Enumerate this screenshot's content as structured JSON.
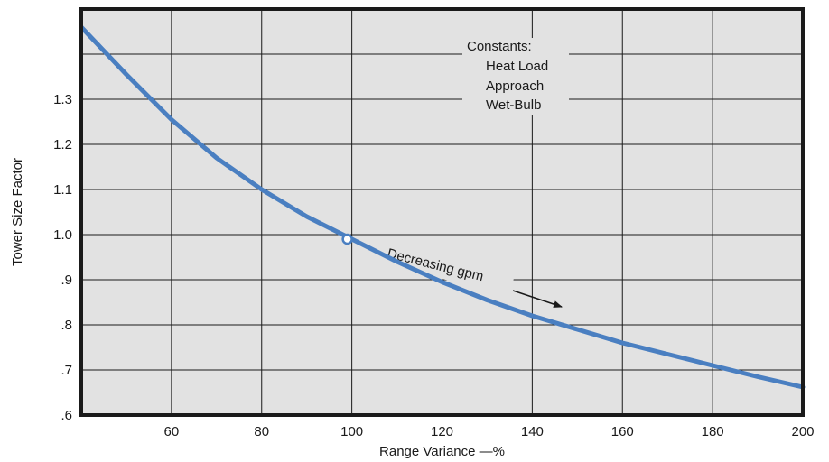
{
  "chart_data": {
    "type": "line",
    "title": "",
    "xlabel": "Range Variance —%",
    "ylabel": "Tower Size Factor",
    "xlim": [
      40,
      200
    ],
    "ylim": [
      0.6,
      1.5
    ],
    "x_ticks": [
      60,
      80,
      100,
      120,
      140,
      160,
      180,
      200
    ],
    "x_tick_labels": [
      "60",
      "80",
      "100",
      "120",
      "140",
      "160",
      "180",
      "200"
    ],
    "y_ticks": [
      0.6,
      0.7,
      0.8,
      0.9,
      1.0,
      1.1,
      1.2,
      1.3
    ],
    "y_tick_labels": [
      ".6",
      ".7",
      ".8",
      ".9",
      "1.0",
      "1.1",
      "1.2",
      "1.3"
    ],
    "grid": true,
    "series": [
      {
        "color": "#4a7fc1",
        "x": [
          40,
          50,
          60,
          70,
          80,
          90,
          100,
          110,
          120,
          130,
          140,
          150,
          160,
          170,
          180,
          190,
          200
        ],
        "y": [
          1.46,
          1.355,
          1.255,
          1.17,
          1.1,
          1.04,
          0.99,
          0.94,
          0.895,
          0.855,
          0.82,
          0.79,
          0.76,
          0.735,
          0.71,
          0.685,
          0.662
        ]
      }
    ],
    "marker": {
      "x": 99,
      "y": 0.99
    },
    "annotations": {
      "constants_lines": [
        "Constants:",
        "Heat Load",
        "Approach",
        "Wet-Bulb"
      ],
      "arrow_label": "Decreasing gpm"
    },
    "colors": {
      "plot_background": "#e2e2e2",
      "frame": "#1a1a1a",
      "grid": "#1a1a1a",
      "curve": "#4a7fc1"
    }
  }
}
